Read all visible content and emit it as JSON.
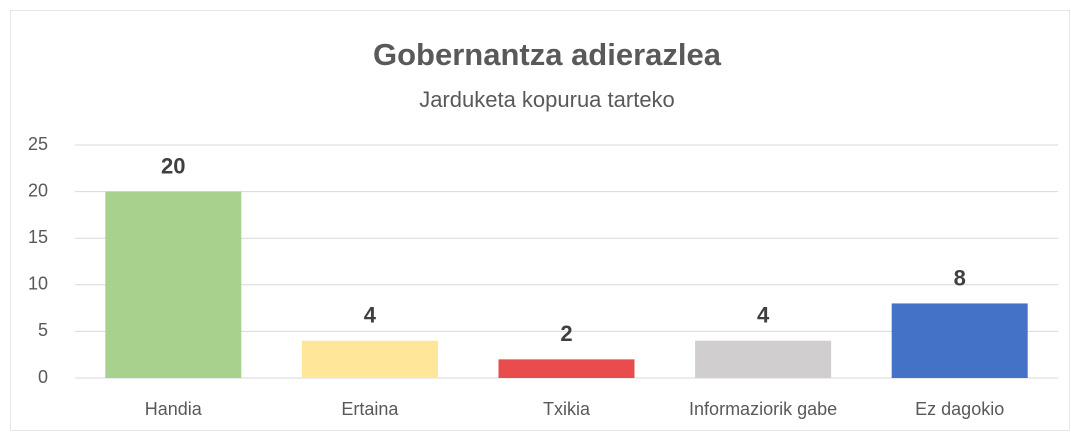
{
  "chart_data": {
    "type": "bar",
    "title": "Gobernantza adierazlea",
    "subtitle": "Jarduketa kopurua tarteko",
    "categories": [
      "Handia",
      "Ertaina",
      "Txikia",
      "Informaziorik gabe",
      "Ez dagokio"
    ],
    "values": [
      20,
      4,
      2,
      4,
      8
    ],
    "colors": [
      "#a9d18e",
      "#ffe699",
      "#e84c4c",
      "#d0cece",
      "#4472c4"
    ],
    "ylim": [
      0,
      25
    ],
    "yticks": [
      0,
      5,
      10,
      15,
      20,
      25
    ],
    "grid": true
  }
}
